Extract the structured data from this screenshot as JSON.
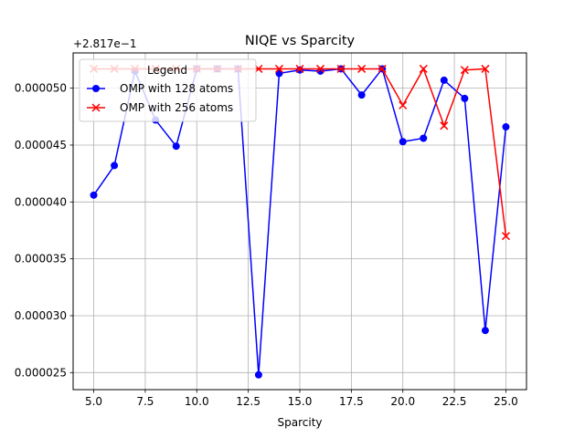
{
  "chart_data": {
    "type": "line",
    "title": "NIQE vs Sparcity",
    "xlabel": "Sparcity",
    "ylabel": "",
    "y_offset_label": "+2.817e−1",
    "xlim": [
      4.0,
      26.0
    ],
    "ylim": [
      2.35e-05,
      5.31e-05
    ],
    "x_ticks": [
      5.0,
      7.5,
      10.0,
      12.5,
      15.0,
      17.5,
      20.0,
      22.5,
      25.0
    ],
    "x_tick_labels": [
      "5.0",
      "7.5",
      "10.0",
      "12.5",
      "15.0",
      "17.5",
      "20.0",
      "22.5",
      "25.0"
    ],
    "y_ticks": [
      2.5e-05,
      3e-05,
      3.5e-05,
      4e-05,
      4.5e-05,
      5e-05
    ],
    "y_tick_labels": [
      "0.000025",
      "0.000030",
      "0.000035",
      "0.000040",
      "0.000045",
      "0.000050"
    ],
    "grid": true,
    "legend": {
      "title": "Legend",
      "placement": "upper-left"
    },
    "x": [
      5,
      6,
      7,
      8,
      9,
      10,
      11,
      12,
      13,
      14,
      15,
      16,
      17,
      18,
      19,
      20,
      21,
      22,
      23,
      24,
      25
    ],
    "series": [
      {
        "name": "OMP with 128 atoms",
        "color": "#0000ff",
        "marker": "circle",
        "values": [
          4.06e-05,
          4.32e-05,
          5.15e-05,
          4.72e-05,
          4.49e-05,
          5.17e-05,
          5.17e-05,
          5.17e-05,
          2.48e-05,
          5.13e-05,
          5.16e-05,
          5.15e-05,
          5.17e-05,
          4.94e-05,
          5.17e-05,
          4.53e-05,
          4.56e-05,
          5.07e-05,
          4.91e-05,
          2.87e-05,
          4.66e-05
        ]
      },
      {
        "name": "OMP with 256 atoms",
        "color": "#ff0000",
        "marker": "x",
        "values": [
          5.17e-05,
          5.17e-05,
          5.17e-05,
          5.17e-05,
          5.17e-05,
          5.17e-05,
          5.17e-05,
          5.17e-05,
          5.17e-05,
          5.17e-05,
          5.17e-05,
          5.17e-05,
          5.17e-05,
          5.17e-05,
          5.17e-05,
          4.85e-05,
          5.17e-05,
          4.67e-05,
          5.16e-05,
          5.17e-05,
          3.7e-05
        ]
      }
    ]
  }
}
